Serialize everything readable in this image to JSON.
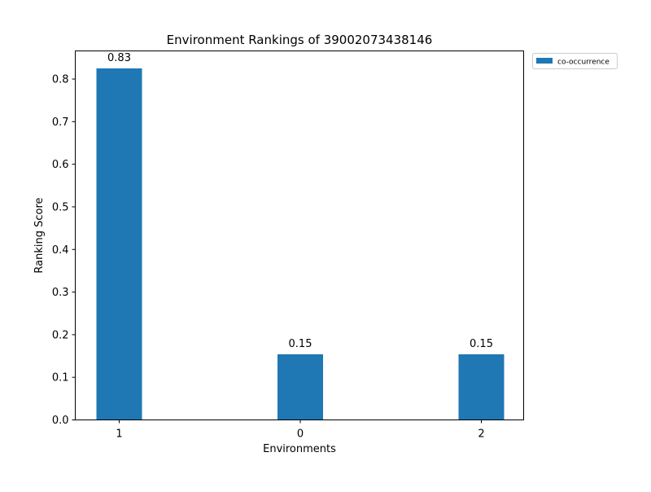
{
  "chart_data": {
    "type": "bar",
    "title": "Environment Rankings of 39002073438146",
    "xlabel": "Environments",
    "ylabel": "Ranking Score",
    "categories": [
      "1",
      "0",
      "2"
    ],
    "series": [
      {
        "name": "co-occurrence",
        "values": [
          0.825,
          0.154,
          0.154
        ],
        "labels": [
          "0.83",
          "0.15",
          "0.15"
        ],
        "color": "#1f77b4"
      }
    ],
    "yticks": [
      0.0,
      0.1,
      0.2,
      0.3,
      0.4,
      0.5,
      0.6,
      0.7,
      0.8
    ],
    "ytick_labels": [
      "0.0",
      "0.1",
      "0.2",
      "0.3",
      "0.4",
      "0.5",
      "0.6",
      "0.7",
      "0.8"
    ],
    "ylim": [
      0,
      0.866
    ],
    "grid": false,
    "legend_position": "outside-top-right"
  }
}
